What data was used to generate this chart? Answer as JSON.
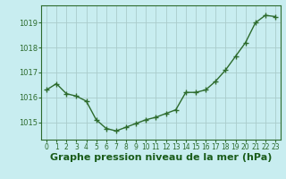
{
  "x": [
    0,
    1,
    2,
    3,
    4,
    5,
    6,
    7,
    8,
    9,
    10,
    11,
    12,
    13,
    14,
    15,
    16,
    17,
    18,
    19,
    20,
    21,
    22,
    23
  ],
  "y": [
    1016.3,
    1016.55,
    1016.15,
    1016.05,
    1015.85,
    1015.1,
    1014.75,
    1014.65,
    1014.8,
    1014.95,
    1015.1,
    1015.2,
    1015.35,
    1015.5,
    1016.2,
    1016.2,
    1016.3,
    1016.65,
    1017.1,
    1017.65,
    1018.2,
    1019.0,
    1019.3,
    1019.25
  ],
  "line_color": "#2d6b2d",
  "marker": "+",
  "marker_size": 4,
  "marker_linewidth": 1.0,
  "bg_color": "#c8edf0",
  "plot_bg_color": "#c8edf0",
  "grid_color": "#aacccc",
  "xlabel": "Graphe pression niveau de la mer (hPa)",
  "xlabel_fontsize": 8,
  "xlabel_color": "#1a5c1a",
  "ylabel_ticks": [
    1015,
    1016,
    1017,
    1018,
    1019
  ],
  "ylim": [
    1014.3,
    1019.7
  ],
  "xlim": [
    -0.5,
    23.5
  ],
  "tick_color": "#2d6b2d",
  "tick_fontsize": 6,
  "xtick_fontsize": 5.5,
  "line_width": 1.0
}
